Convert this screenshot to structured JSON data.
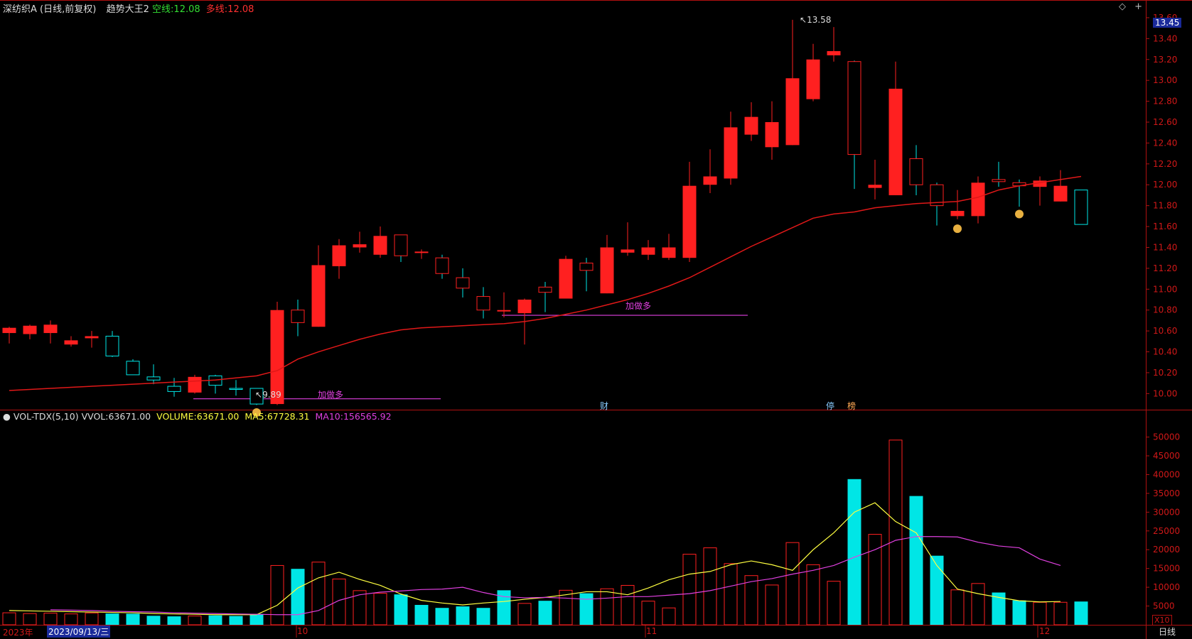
{
  "header": {
    "stock_name": "深纺织A",
    "period": "(日线,前复权)",
    "indicator": "趋势大王2",
    "short_label": "空线:",
    "short_value": "12.08",
    "long_label": "多线:",
    "long_value": "12.08",
    "icon_diamond": "◇",
    "icon_plus": "+"
  },
  "volume_header": {
    "name": "VOL-TDX(5,10)",
    "vvol_label": "VVOL:",
    "vvol_value": "63671.00",
    "volume_label": "VOLUME:",
    "volume_value": "63671.00",
    "ma5_label": "MA5:",
    "ma5_value": "67728.31",
    "ma10_label": "MA10:",
    "ma10_value": "156565.92"
  },
  "annotations": {
    "high_label": "13.58",
    "low_label": "9.89",
    "signal_1": "加做多",
    "signal_2": "加做多",
    "event_cai": "财",
    "event_ting": "停",
    "event_bang": "榜"
  },
  "price_axis": {
    "current_price": "13.45",
    "ticks": [
      "13.60",
      "13.40",
      "13.20",
      "13.00",
      "12.80",
      "12.60",
      "12.40",
      "12.20",
      "12.00",
      "11.80",
      "11.60",
      "11.40",
      "11.20",
      "11.00",
      "10.80",
      "10.60",
      "10.40",
      "10.20",
      "10.00"
    ]
  },
  "volume_axis": {
    "ticks": [
      "50000",
      "45000",
      "40000",
      "35000",
      "30000",
      "25000",
      "20000",
      "15000",
      "10000",
      "5000"
    ],
    "unit": "X10"
  },
  "time_axis": {
    "year": "2023年",
    "cursor_date": "2023/09/13/三",
    "month_labels": [
      "10",
      "11",
      "12"
    ],
    "period_button": "日线"
  },
  "colors": {
    "up": "#ff2020",
    "down": "#00e6e6",
    "flat": "#ffffff",
    "ma_line": "#e01818",
    "ma5": "#ffff40",
    "ma10": "#e040e0",
    "axis_red": "#b01010",
    "signal": "#e040e0"
  },
  "chart_data": {
    "type": "candlestick",
    "y_range": [
      9.88,
      13.62
    ],
    "volume_range": [
      0,
      52000
    ],
    "candles": [
      {
        "o": 10.58,
        "h": 10.64,
        "l": 10.48,
        "c": 10.63,
        "v": 3200
      },
      {
        "o": 10.57,
        "h": 10.66,
        "l": 10.52,
        "c": 10.65,
        "v": 3000
      },
      {
        "o": 10.58,
        "h": 10.7,
        "l": 10.48,
        "c": 10.66,
        "v": 3100
      },
      {
        "o": 10.47,
        "h": 10.55,
        "l": 10.45,
        "c": 10.51,
        "v": 2900
      },
      {
        "o": 10.53,
        "h": 10.6,
        "l": 10.44,
        "c": 10.55,
        "v": 3150
      },
      {
        "o": 10.55,
        "h": 10.6,
        "l": 10.35,
        "c": 10.36,
        "v": 3000
      },
      {
        "o": 10.31,
        "h": 10.33,
        "l": 10.18,
        "c": 10.18,
        "v": 2950
      },
      {
        "o": 10.16,
        "h": 10.28,
        "l": 10.09,
        "c": 10.13,
        "v": 2400
      },
      {
        "o": 10.07,
        "h": 10.15,
        "l": 9.97,
        "c": 10.02,
        "v": 2250
      },
      {
        "o": 10.01,
        "h": 10.18,
        "l": 10.0,
        "c": 10.16,
        "v": 2350
      },
      {
        "o": 10.17,
        "h": 10.18,
        "l": 10.0,
        "c": 10.08,
        "v": 2500
      },
      {
        "o": 10.05,
        "h": 10.13,
        "l": 9.98,
        "c": 10.04,
        "v": 2350
      },
      {
        "o": 10.05,
        "h": 10.05,
        "l": 9.89,
        "c": 9.9,
        "v": 2900
      },
      {
        "o": 9.9,
        "h": 10.88,
        "l": 9.89,
        "c": 10.8,
        "v": 15800
      },
      {
        "o": 10.8,
        "h": 10.9,
        "l": 10.55,
        "c": 10.68,
        "v": 14900
      },
      {
        "o": 10.64,
        "h": 11.42,
        "l": 10.64,
        "c": 11.23,
        "v": 16700
      },
      {
        "o": 11.22,
        "h": 11.48,
        "l": 11.1,
        "c": 11.42,
        "v": 12200
      },
      {
        "o": 11.4,
        "h": 11.55,
        "l": 11.35,
        "c": 11.43,
        "v": 9100
      },
      {
        "o": 11.33,
        "h": 11.6,
        "l": 11.3,
        "c": 11.51,
        "v": 8400
      },
      {
        "o": 11.52,
        "h": 11.52,
        "l": 11.26,
        "c": 11.32,
        "v": 8100
      },
      {
        "o": 11.36,
        "h": 11.38,
        "l": 11.29,
        "c": 11.36,
        "v": 5300
      },
      {
        "o": 11.3,
        "h": 11.33,
        "l": 11.1,
        "c": 11.15,
        "v": 4500
      },
      {
        "o": 11.11,
        "h": 11.2,
        "l": 10.92,
        "c": 11.01,
        "v": 4900
      },
      {
        "o": 10.93,
        "h": 11.02,
        "l": 10.72,
        "c": 10.8,
        "v": 4500
      },
      {
        "o": 10.8,
        "h": 10.97,
        "l": 10.73,
        "c": 10.8,
        "v": 9200
      },
      {
        "o": 10.77,
        "h": 10.91,
        "l": 10.47,
        "c": 10.9,
        "v": 5700
      },
      {
        "o": 11.02,
        "h": 11.07,
        "l": 10.78,
        "c": 10.97,
        "v": 6400
      },
      {
        "o": 10.91,
        "h": 11.32,
        "l": 10.91,
        "c": 11.29,
        "v": 9200
      },
      {
        "o": 11.25,
        "h": 11.3,
        "l": 10.98,
        "c": 11.18,
        "v": 8400
      },
      {
        "o": 10.96,
        "h": 11.52,
        "l": 10.96,
        "c": 11.4,
        "v": 9600
      },
      {
        "o": 11.35,
        "h": 11.64,
        "l": 11.32,
        "c": 11.38,
        "v": 10500
      },
      {
        "o": 11.33,
        "h": 11.47,
        "l": 11.28,
        "c": 11.4,
        "v": 6300
      },
      {
        "o": 11.3,
        "h": 11.53,
        "l": 11.28,
        "c": 11.4,
        "v": 4500
      },
      {
        "o": 11.3,
        "h": 12.22,
        "l": 11.26,
        "c": 11.99,
        "v": 18800
      },
      {
        "o": 12.0,
        "h": 12.34,
        "l": 11.92,
        "c": 12.08,
        "v": 20500
      },
      {
        "o": 12.06,
        "h": 12.7,
        "l": 12.0,
        "c": 12.55,
        "v": 16300
      },
      {
        "o": 12.48,
        "h": 12.79,
        "l": 12.42,
        "c": 12.65,
        "v": 13100
      },
      {
        "o": 12.36,
        "h": 12.8,
        "l": 12.24,
        "c": 12.6,
        "v": 10600
      },
      {
        "o": 12.38,
        "h": 13.58,
        "l": 12.38,
        "c": 13.02,
        "v": 21900
      },
      {
        "o": 12.82,
        "h": 13.35,
        "l": 12.8,
        "c": 13.2,
        "v": 16000
      },
      {
        "o": 13.24,
        "h": 13.51,
        "l": 13.18,
        "c": 13.28,
        "v": 11600
      },
      {
        "o": 13.18,
        "h": 13.19,
        "l": 11.96,
        "c": 12.29,
        "v": 38800
      },
      {
        "o": 11.97,
        "h": 12.24,
        "l": 11.86,
        "c": 12.0,
        "v": 24100
      },
      {
        "o": 11.9,
        "h": 13.18,
        "l": 11.9,
        "c": 12.92,
        "v": 49200
      },
      {
        "o": 12.25,
        "h": 12.38,
        "l": 11.9,
        "c": 12.0,
        "v": 34300
      },
      {
        "o": 12.0,
        "h": 12.02,
        "l": 11.61,
        "c": 11.8,
        "v": 18400
      },
      {
        "o": 11.7,
        "h": 11.95,
        "l": 11.67,
        "c": 11.75,
        "v": 9300
      },
      {
        "o": 11.7,
        "h": 12.08,
        "l": 11.63,
        "c": 12.02,
        "v": 11000
      },
      {
        "o": 12.05,
        "h": 12.22,
        "l": 11.98,
        "c": 12.03,
        "v": 8600
      },
      {
        "o": 12.02,
        "h": 12.05,
        "l": 11.79,
        "c": 11.99,
        "v": 6500
      },
      {
        "o": 11.98,
        "h": 12.08,
        "l": 11.8,
        "c": 12.04,
        "v": 6000
      },
      {
        "o": 11.84,
        "h": 12.14,
        "l": 11.84,
        "c": 11.99,
        "v": 6000
      },
      {
        "o": 11.95,
        "h": 11.95,
        "l": 11.62,
        "c": 11.62,
        "v": 6200
      }
    ],
    "ma_line": [
      10.03,
      10.04,
      10.05,
      10.06,
      10.07,
      10.08,
      10.09,
      10.1,
      10.11,
      10.12,
      10.13,
      10.15,
      10.17,
      10.22,
      10.33,
      10.4,
      10.46,
      10.52,
      10.57,
      10.61,
      10.63,
      10.64,
      10.65,
      10.66,
      10.67,
      10.69,
      10.72,
      10.76,
      10.8,
      10.85,
      10.9,
      10.96,
      11.03,
      11.11,
      11.21,
      11.31,
      11.41,
      11.5,
      11.59,
      11.68,
      11.72,
      11.74,
      11.78,
      11.8,
      11.82,
      11.83,
      11.84,
      11.88,
      11.95,
      11.99,
      12.02,
      12.05,
      12.08
    ],
    "ma5": [
      3800,
      3700,
      3600,
      3500,
      3400,
      3300,
      3200,
      3000,
      2900,
      2800,
      2700,
      2700,
      2700,
      5200,
      9800,
      12500,
      14000,
      12100,
      10500,
      8200,
      6500,
      5800,
      5300,
      5800,
      6200,
      6800,
      7300,
      8000,
      8800,
      8800,
      8000,
      9800,
      12000,
      13500,
      14200,
      16000,
      17000,
      16000,
      14500,
      20000,
      24500,
      30000,
      32500,
      27500,
      24500,
      15800,
      9500,
      8300,
      7300,
      6400,
      6100,
      6200
    ],
    "ma10": [
      4000,
      3900,
      3800,
      3600,
      3500,
      3400,
      3200,
      3100,
      3000,
      2900,
      2800,
      2700,
      2700,
      3800,
      6500,
      8000,
      8700,
      9000,
      9400,
      9500,
      10000,
      8600,
      7500,
      7200,
      7300,
      7100,
      6800,
      7100,
      7500,
      7500,
      7900,
      8300,
      9100,
      10300,
      11500,
      12300,
      13500,
      14500,
      15800,
      18000,
      20000,
      22500,
      23500,
      23500,
      23400,
      22000,
      21000,
      20500,
      17500,
      15800
    ],
    "ma10_offset": 2
  }
}
